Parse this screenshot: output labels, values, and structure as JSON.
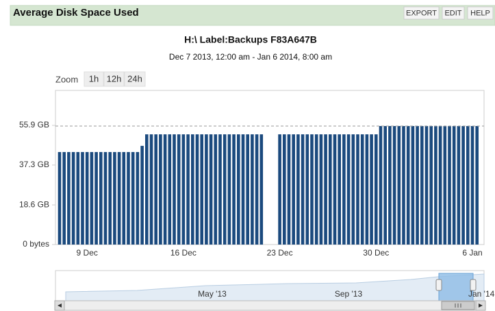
{
  "header": {
    "title": "Average Disk Space Used",
    "buttons": [
      "EXPORT",
      "EDIT",
      "HELP"
    ]
  },
  "zoom": {
    "label": "Zoom",
    "buttons": [
      "1h",
      "12h",
      "24h"
    ]
  },
  "chart_data": {
    "type": "bar",
    "title": "H:\\ Label:Backups F83A647B",
    "subtitle": "Dec 7 2013, 12:00 am - Jan 6 2014, 8:00 am",
    "categories": [
      null,
      null,
      null,
      null,
      null,
      null,
      "9 Dec",
      null,
      null,
      null,
      null,
      null,
      null,
      null,
      null,
      null,
      null,
      null,
      null,
      null,
      null,
      null,
      null,
      null,
      null,
      null,
      null,
      "16 Dec",
      null,
      null,
      null,
      null,
      null,
      null,
      null,
      null,
      null,
      null,
      null,
      null,
      null,
      null,
      null,
      null,
      null,
      null,
      null,
      null,
      "23 Dec",
      null,
      null,
      null,
      null,
      null,
      null,
      null,
      null,
      null,
      null,
      null,
      null,
      null,
      null,
      null,
      null,
      null,
      null,
      null,
      null,
      "30 Dec",
      null,
      null,
      null,
      null,
      null,
      null,
      null,
      null,
      null,
      null,
      null,
      null,
      null,
      null,
      null,
      null,
      null,
      null,
      null,
      null,
      "6 Jan",
      null
    ],
    "values": [
      43.4,
      43.4,
      43.4,
      43.4,
      43.4,
      43.4,
      43.4,
      43.4,
      43.4,
      43.4,
      43.4,
      43.4,
      43.4,
      43.4,
      43.4,
      43.4,
      43.4,
      43.4,
      46.3,
      51.7,
      51.7,
      51.7,
      51.7,
      51.7,
      51.7,
      51.7,
      51.7,
      51.7,
      51.7,
      51.7,
      51.7,
      51.7,
      51.7,
      51.7,
      51.7,
      51.7,
      51.7,
      51.7,
      51.7,
      51.7,
      51.7,
      51.7,
      51.7,
      51.7,
      51.7,
      null,
      null,
      null,
      51.7,
      51.7,
      51.7,
      51.7,
      51.7,
      51.7,
      51.7,
      51.7,
      51.7,
      51.7,
      51.7,
      51.7,
      51.7,
      51.7,
      51.7,
      51.7,
      51.7,
      51.7,
      51.7,
      51.7,
      51.7,
      51.7,
      55.6,
      55.6,
      55.6,
      55.6,
      55.6,
      55.6,
      55.6,
      55.6,
      55.6,
      55.6,
      55.6,
      55.6,
      55.6,
      55.6,
      55.6,
      55.6,
      55.6,
      55.6,
      55.6,
      55.6,
      55.6,
      55.6
    ],
    "color": "#1b4a7e",
    "ylim": [
      0,
      72.3
    ],
    "yticks": [
      {
        "value": 0,
        "label": "0 bytes"
      },
      {
        "value": 18.6,
        "label": "18.6 GB"
      },
      {
        "value": 37.3,
        "label": "37.3 GB"
      },
      {
        "value": 55.9,
        "label": "55.9 GB"
      }
    ],
    "max_line": 55.6
  },
  "navigator": {
    "labels": [
      "May '13",
      "Sep '13",
      "Jan '14"
    ]
  }
}
